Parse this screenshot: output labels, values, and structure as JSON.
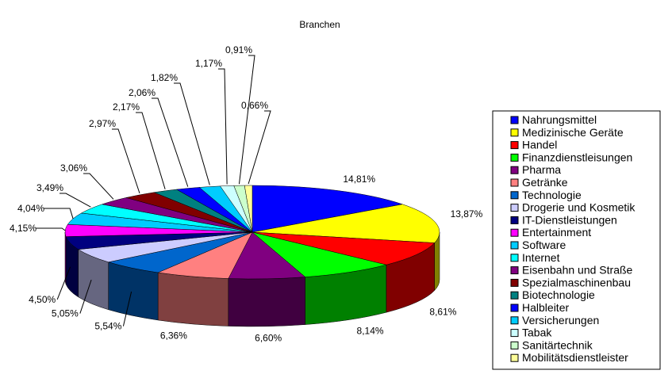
{
  "chart_data": {
    "type": "pie",
    "title": "Branchen",
    "legend_position": "right",
    "categories": [
      "Nahrungsmittel",
      "Medizinische Geräte",
      "Handel",
      "Finanzdienstleisungen",
      "Pharma",
      "Getränke",
      "Technologie",
      "Drogerie und Kosmetik",
      "IT-Dienstleistungen",
      "Entertainment",
      "Software",
      "Internet",
      "Eisenbahn und Straße",
      "Spezialmaschinenbau",
      "Biotechnologie",
      "Halbleiter",
      "Versicherungen",
      "Tabak",
      "Sanitärtechnik",
      "Mobilitätsdienstleister"
    ],
    "values": [
      14.81,
      13.87,
      8.61,
      8.14,
      6.6,
      6.36,
      5.54,
      5.05,
      4.5,
      4.15,
      4.04,
      3.49,
      3.06,
      2.97,
      2.17,
      2.06,
      1.82,
      1.17,
      0.91,
      0.66
    ],
    "labels": [
      "14,81%",
      "13,87%",
      "8,61%",
      "8,14%",
      "6,60%",
      "6,36%",
      "5,54%",
      "5,05%",
      "4,50%",
      "4,15%",
      "4,04%",
      "3,49%",
      "3,06%",
      "2,97%",
      "2,17%",
      "2,06%",
      "1,82%",
      "1,17%",
      "0,91%",
      "0,66%"
    ],
    "colors": [
      "#0000ff",
      "#ffff00",
      "#ff0000",
      "#00ff00",
      "#800080",
      "#ff8080",
      "#0066cc",
      "#ccccff",
      "#000080",
      "#ff00ff",
      "#00ccff",
      "#00ffff",
      "#800080",
      "#800000",
      "#008080",
      "#0000ff",
      "#00ccff",
      "#ccffff",
      "#ccffcc",
      "#ffff99"
    ]
  }
}
